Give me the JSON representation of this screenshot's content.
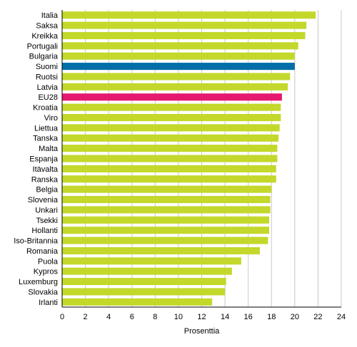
{
  "chart_data": {
    "type": "bar",
    "orientation": "horizontal",
    "title": "",
    "xlabel": "Prosenttia",
    "ylabel": "",
    "xlim": [
      0,
      24
    ],
    "xticks": [
      0,
      2,
      4,
      6,
      8,
      10,
      12,
      14,
      16,
      18,
      20,
      22,
      24
    ],
    "grid": true,
    "legend": "none",
    "categories": [
      "Italia",
      "Saksa",
      "Kreikka",
      "Portugali",
      "Bulgaria",
      "Suomi",
      "Ruotsi",
      "Latvia",
      "EU28",
      "Kroatia",
      "Viro",
      "Liettua",
      "Tanska",
      "Malta",
      "Espanja",
      "Itävalta",
      "Ranska",
      "Belgia",
      "Slovenia",
      "Unkari",
      "Tsekki",
      "Hollanti",
      "Iso-Britannia",
      "Romania",
      "Puola",
      "Kypros",
      "Luxemburg",
      "Slovakia",
      "Irlanti"
    ],
    "values": [
      21.8,
      21.0,
      20.9,
      20.3,
      20.0,
      20.0,
      19.6,
      19.4,
      18.9,
      18.8,
      18.8,
      18.7,
      18.6,
      18.5,
      18.5,
      18.4,
      18.4,
      18.0,
      17.9,
      17.9,
      17.8,
      17.8,
      17.7,
      17.0,
      15.4,
      14.6,
      14.1,
      14.0,
      12.9
    ],
    "colors": {
      "default": "#c3d82b",
      "highlight": {
        "Suomi": "#006ea8",
        "EU28": "#e5196f"
      }
    }
  }
}
